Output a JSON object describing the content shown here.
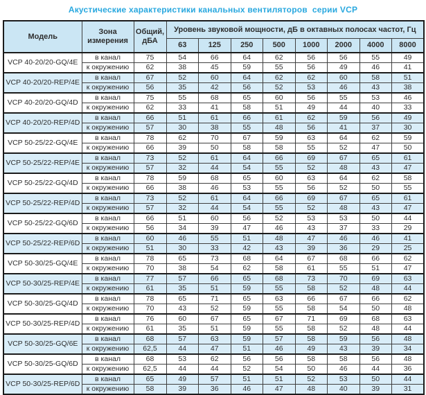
{
  "title": "Акустические характеристики канальных вентиляторов  серии VCP",
  "colors": {
    "title_text": "#29A8DF",
    "header_bg": "#CBE6F4",
    "shaded_row_bg": "#D9EDF8",
    "border": "#3F3F3F",
    "border_heavy": "#1B1B1B",
    "text": "#2E2E2E"
  },
  "table": {
    "headers": {
      "model": "Модель",
      "zone": "Зона\nизмерения",
      "total": "Общий,\nдБА",
      "spl": "Уровень звуковой мощности, дБ в октавных полосах частот, Гц",
      "frequencies": [
        "63",
        "125",
        "250",
        "500",
        "1000",
        "2000",
        "4000",
        "8000"
      ]
    },
    "zone_labels": {
      "duct": "в канал",
      "ambient": "к окружению"
    },
    "rows": [
      {
        "model": "VCP 40-20/20-GQ/4E",
        "shaded": false,
        "duct": {
          "total": "75",
          "levels": [
            "54",
            "66",
            "64",
            "62",
            "56",
            "56",
            "55",
            "49"
          ]
        },
        "ambient": {
          "total": "62",
          "levels": [
            "38",
            "45",
            "59",
            "55",
            "56",
            "49",
            "46",
            "41"
          ]
        }
      },
      {
        "model": "VCP 40-20/20-REP/4E",
        "shaded": true,
        "duct": {
          "total": "67",
          "levels": [
            "52",
            "60",
            "64",
            "62",
            "62",
            "60",
            "58",
            "51"
          ]
        },
        "ambient": {
          "total": "56",
          "levels": [
            "35",
            "42",
            "56",
            "52",
            "53",
            "46",
            "43",
            "38"
          ]
        }
      },
      {
        "model": "VCP 40-20/20-GQ/4D",
        "shaded": false,
        "duct": {
          "total": "75",
          "levels": [
            "55",
            "68",
            "65",
            "60",
            "56",
            "55",
            "53",
            "46"
          ]
        },
        "ambient": {
          "total": "62",
          "levels": [
            "33",
            "41",
            "58",
            "51",
            "49",
            "44",
            "40",
            "33"
          ]
        }
      },
      {
        "model": "VCP 40-20/20-REP/4D",
        "shaded": true,
        "duct": {
          "total": "66",
          "levels": [
            "51",
            "61",
            "66",
            "61",
            "62",
            "59",
            "56",
            "49"
          ]
        },
        "ambient": {
          "total": "57",
          "levels": [
            "30",
            "38",
            "55",
            "48",
            "56",
            "41",
            "37",
            "30"
          ]
        }
      },
      {
        "model": "VCP 50-25/22-GQ/4E",
        "shaded": false,
        "duct": {
          "total": "78",
          "levels": [
            "62",
            "70",
            "67",
            "59",
            "63",
            "64",
            "62",
            "59"
          ]
        },
        "ambient": {
          "total": "66",
          "levels": [
            "39",
            "50",
            "58",
            "58",
            "55",
            "52",
            "47",
            "50"
          ]
        }
      },
      {
        "model": "VCP 50-25/22-REP/4E",
        "shaded": true,
        "duct": {
          "total": "73",
          "levels": [
            "52",
            "61",
            "64",
            "66",
            "69",
            "67",
            "65",
            "61"
          ]
        },
        "ambient": {
          "total": "57",
          "levels": [
            "32",
            "44",
            "54",
            "55",
            "52",
            "48",
            "43",
            "47"
          ]
        }
      },
      {
        "model": "VCP 50-25/22-GQ/4D",
        "shaded": false,
        "duct": {
          "total": "78",
          "levels": [
            "59",
            "68",
            "65",
            "60",
            "63",
            "64",
            "62",
            "58"
          ]
        },
        "ambient": {
          "total": "66",
          "levels": [
            "38",
            "46",
            "53",
            "55",
            "56",
            "52",
            "50",
            "55"
          ]
        }
      },
      {
        "model": "VCP 50-25/22-REP/4D",
        "shaded": true,
        "duct": {
          "total": "73",
          "levels": [
            "52",
            "61",
            "64",
            "66",
            "69",
            "67",
            "65",
            "61"
          ]
        },
        "ambient": {
          "total": "57",
          "levels": [
            "32",
            "44",
            "54",
            "55",
            "52",
            "48",
            "43",
            "47"
          ]
        }
      },
      {
        "model": "VCP 50-25/22-GQ/6D",
        "shaded": false,
        "duct": {
          "total": "66",
          "levels": [
            "51",
            "60",
            "56",
            "52",
            "53",
            "53",
            "50",
            "44"
          ]
        },
        "ambient": {
          "total": "56",
          "levels": [
            "34",
            "39",
            "47",
            "46",
            "43",
            "37",
            "33",
            "29"
          ]
        }
      },
      {
        "model": "VCP 50-25/22-REP/6D",
        "shaded": true,
        "duct": {
          "total": "60",
          "levels": [
            "46",
            "55",
            "51",
            "48",
            "47",
            "46",
            "46",
            "41"
          ]
        },
        "ambient": {
          "total": "51",
          "levels": [
            "30",
            "33",
            "42",
            "43",
            "39",
            "36",
            "29",
            "25"
          ]
        }
      },
      {
        "model": "VCP 50-30/25-GQ/4E",
        "shaded": false,
        "duct": {
          "total": "78",
          "levels": [
            "65",
            "73",
            "68",
            "64",
            "67",
            "68",
            "66",
            "62"
          ]
        },
        "ambient": {
          "total": "70",
          "levels": [
            "38",
            "54",
            "62",
            "58",
            "61",
            "55",
            "51",
            "47"
          ]
        }
      },
      {
        "model": "VCP 50-30/25-REP/4E",
        "shaded": true,
        "duct": {
          "total": "77",
          "levels": [
            "57",
            "66",
            "65",
            "68",
            "73",
            "70",
            "69",
            "63"
          ]
        },
        "ambient": {
          "total": "61",
          "levels": [
            "35",
            "51",
            "59",
            "55",
            "58",
            "52",
            "48",
            "44"
          ]
        }
      },
      {
        "model": "VCP 50-30/25-GQ/4D",
        "shaded": false,
        "duct": {
          "total": "78",
          "levels": [
            "65",
            "71",
            "65",
            "63",
            "66",
            "67",
            "66",
            "62"
          ]
        },
        "ambient": {
          "total": "70",
          "levels": [
            "43",
            "52",
            "59",
            "55",
            "58",
            "54",
            "50",
            "48"
          ]
        }
      },
      {
        "model": "VCP 50-30/25-REP/4D",
        "shaded": false,
        "duct": {
          "total": "76",
          "levels": [
            "60",
            "67",
            "65",
            "67",
            "71",
            "69",
            "68",
            "63"
          ]
        },
        "ambient": {
          "total": "61",
          "levels": [
            "35",
            "51",
            "59",
            "55",
            "58",
            "52",
            "48",
            "44"
          ]
        }
      },
      {
        "model": "VCP 50-30/25-GQ/6E",
        "shaded": true,
        "duct": {
          "total": "68",
          "levels": [
            "57",
            "63",
            "59",
            "57",
            "58",
            "59",
            "56",
            "48"
          ]
        },
        "ambient": {
          "total": "62,5",
          "levels": [
            "44",
            "47",
            "51",
            "46",
            "49",
            "43",
            "39",
            "34"
          ]
        }
      },
      {
        "model": "VCP 50-30/25-GQ/6D",
        "shaded": false,
        "duct": {
          "total": "68",
          "levels": [
            "53",
            "62",
            "56",
            "56",
            "58",
            "58",
            "56",
            "48"
          ]
        },
        "ambient": {
          "total": "62,5",
          "levels": [
            "44",
            "44",
            "52",
            "54",
            "50",
            "46",
            "44",
            "36"
          ]
        }
      },
      {
        "model": "VCP 50-30/25-REP/6D",
        "shaded": true,
        "duct": {
          "total": "65",
          "levels": [
            "49",
            "57",
            "51",
            "51",
            "52",
            "53",
            "50",
            "44"
          ]
        },
        "ambient": {
          "total": "58",
          "levels": [
            "39",
            "36",
            "46",
            "47",
            "48",
            "40",
            "39",
            "31"
          ]
        }
      }
    ]
  }
}
